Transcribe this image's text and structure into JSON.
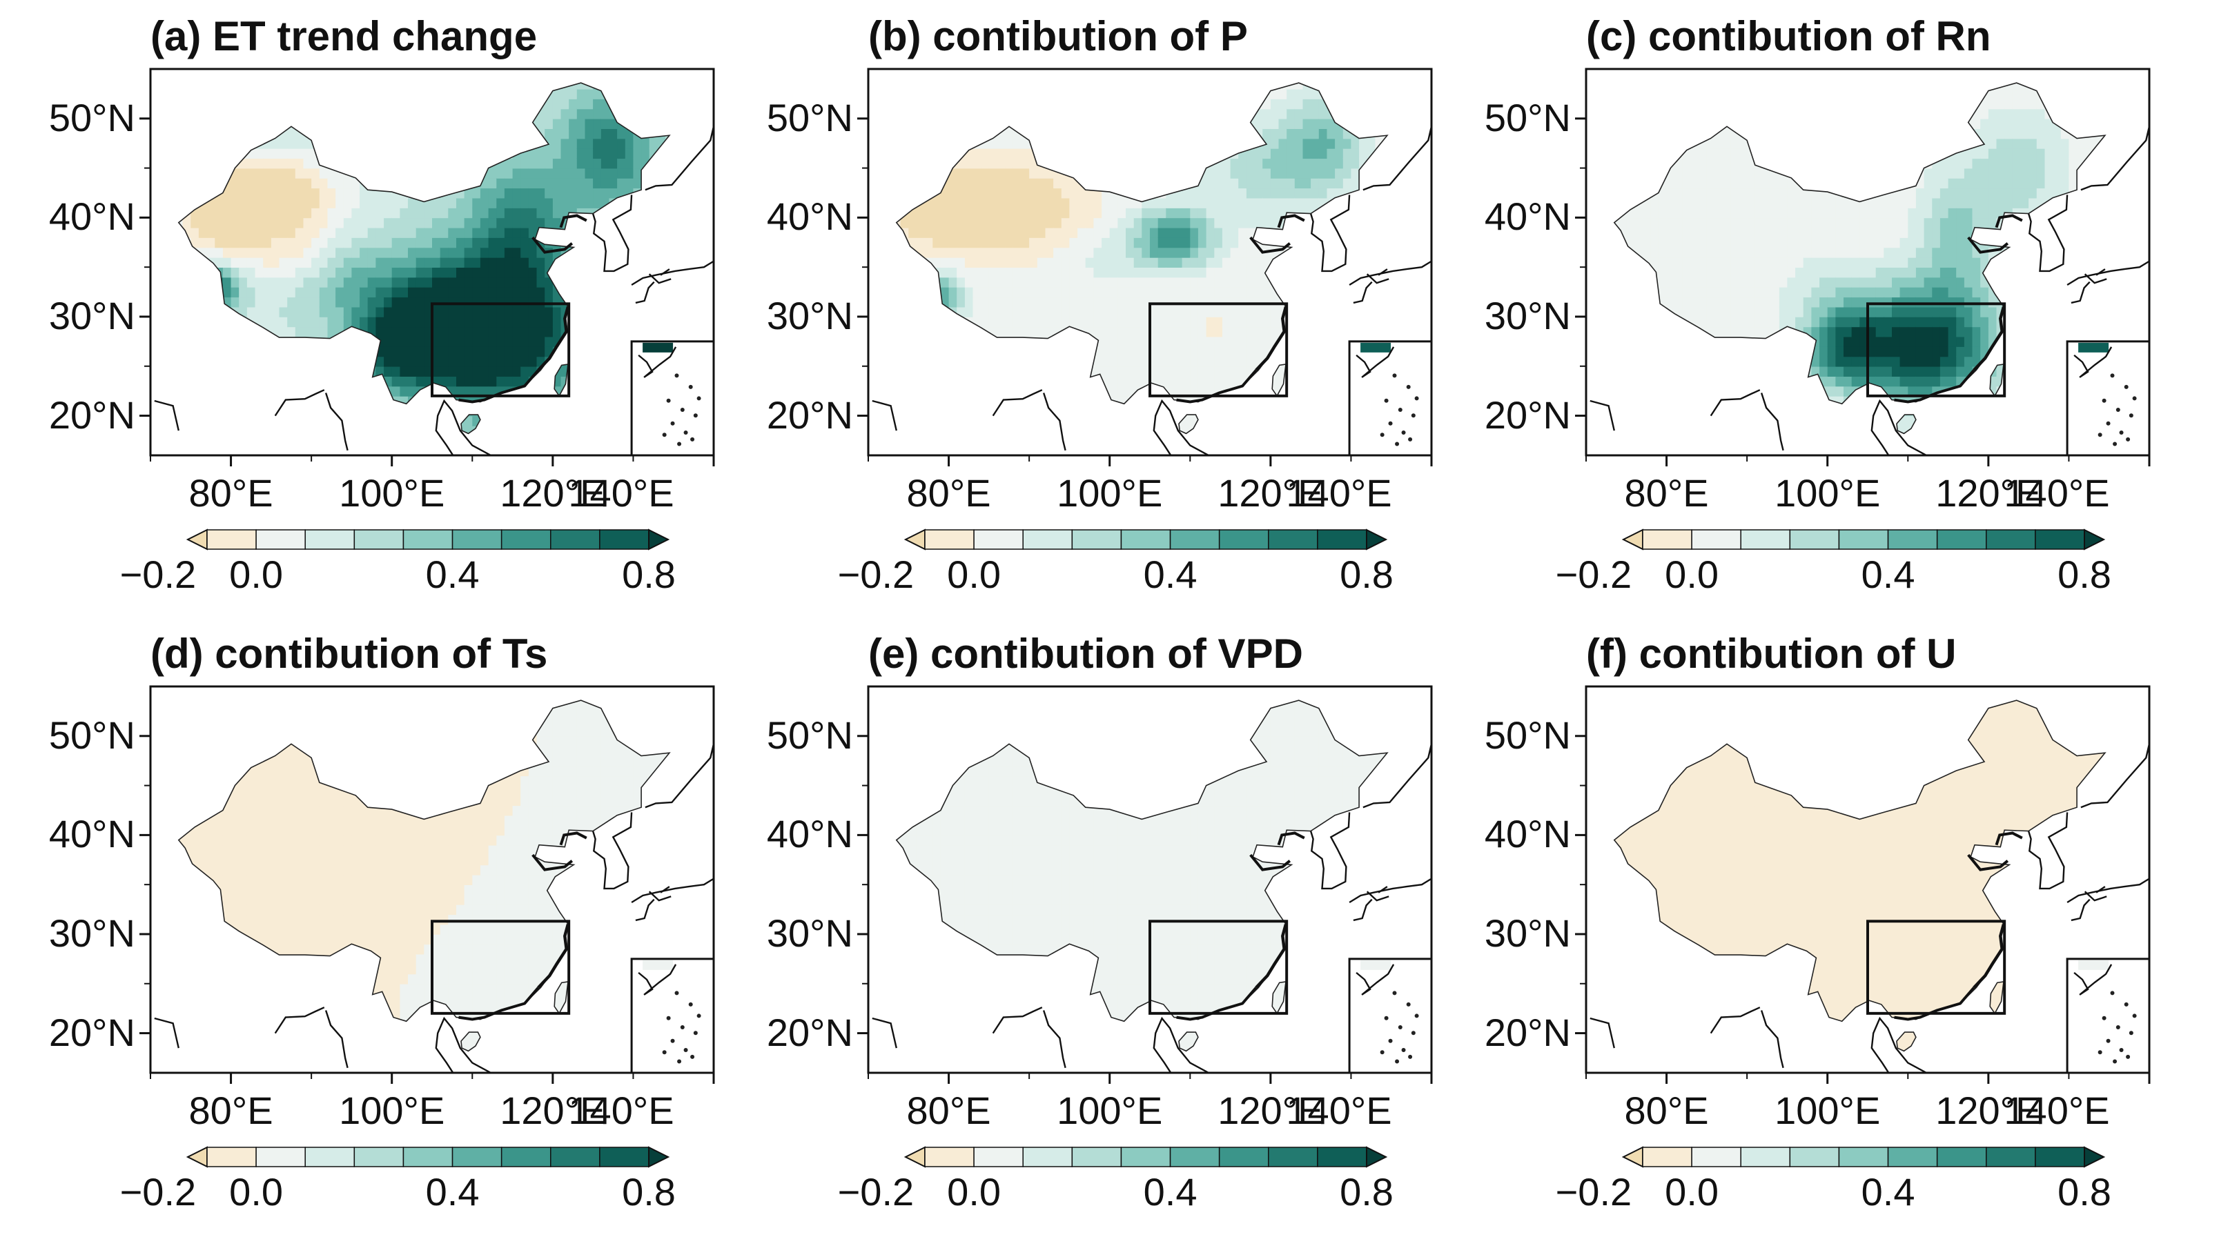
{
  "figure": {
    "colorbar": {
      "ticks": [
        "−0.2",
        "0.0",
        "0.4",
        "0.8"
      ],
      "levels": [
        -0.2,
        -0.1,
        0.0,
        0.1,
        0.2,
        0.3,
        0.4,
        0.5,
        0.6,
        0.7,
        0.8
      ],
      "colors": [
        "#f0dcb2",
        "#f8ecd6",
        "#eef3f1",
        "#d6ece8",
        "#b4ddd6",
        "#8ccbc1",
        "#5fb0a5",
        "#3b958a",
        "#237a70",
        "#0f5f57",
        "#063f3a"
      ],
      "extend": "both"
    },
    "lat_ticks": [
      "50°N",
      "40°N",
      "30°N",
      "20°N"
    ],
    "lon_ticks": [
      "80°E",
      "100°E",
      "120°E",
      "140°E"
    ],
    "region_box": "105°E–122°E, 22°N–31°N"
  },
  "panels": [
    {
      "id": "a",
      "title": "(a) ET trend change"
    },
    {
      "id": "b",
      "title": "(b) contibution of P"
    },
    {
      "id": "c",
      "title": "(c) contibution of Rn"
    },
    {
      "id": "d",
      "title": "(d) contibution of Ts"
    },
    {
      "id": "e",
      "title": "(e) contibution of VPD"
    },
    {
      "id": "f",
      "title": "(f) contibution of U"
    }
  ]
}
